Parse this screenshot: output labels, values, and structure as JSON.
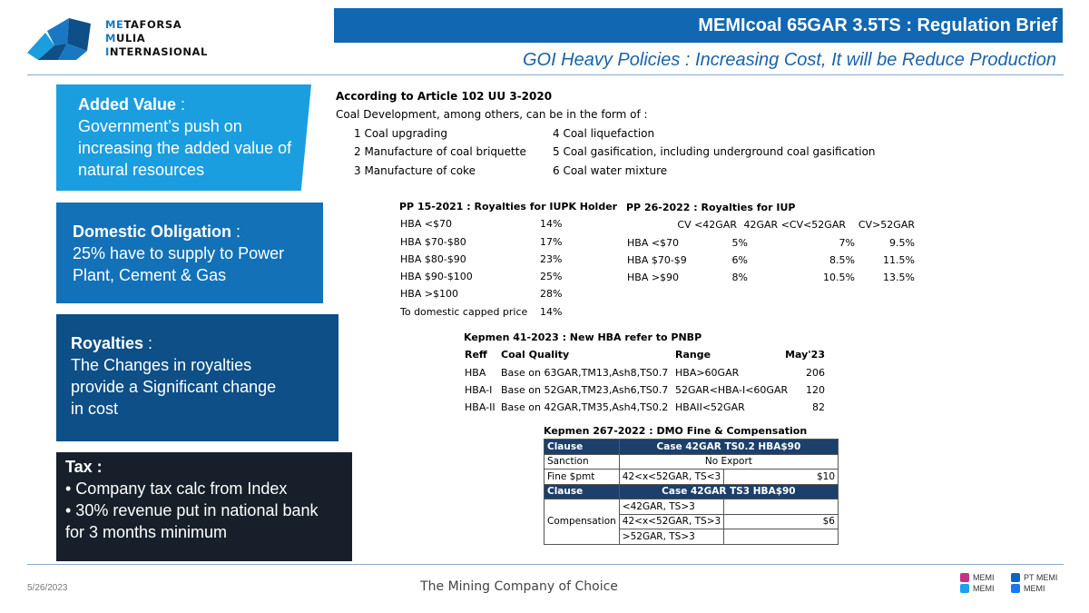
{
  "logo": {
    "line1_hl": "ME",
    "line1_rest": "TAFORSA",
    "line2_hl": "M",
    "line2_rest": "ULIA",
    "line3_hl": "I",
    "line3_rest": "NTERNASIONAL"
  },
  "title": "MEMIcoal 65GAR 3.5TS : Regulation Brief",
  "subtitle": "GOI Heavy Policies : Increasing Cost, It will be Reduce Production",
  "sidebar": {
    "added_value": {
      "head": "Added Value",
      "colon": " :",
      "body": "Government’s push on increasing the added value of natural resources"
    },
    "domestic": {
      "head": "Domestic Obligation",
      "colon": " :",
      "body": "25% have to supply to Power Plant, Cement & Gas"
    },
    "royalties": {
      "head": "Royalties",
      "colon": " :",
      "body": "The Changes in royalties provide a Significant change in cost"
    },
    "tax": {
      "head": "Tax :",
      "bullets": [
        "•    Company tax calc from Index",
        "•    30% revenue put in national bank for 3 months minimum"
      ]
    }
  },
  "article": {
    "title": "According to Article 102 UU 3-2020",
    "intro": "Coal Development, among others, can be in the form of :",
    "items_left": [
      "1 Coal upgrading",
      "2 Manufacture of coal briquette",
      "3 Manufacture of coke"
    ],
    "items_right": [
      "4 Coal liquefaction",
      "5 Coal gasification, including underground coal gasification",
      "6  Coal water mixture"
    ]
  },
  "pp15": {
    "title": "PP 15-2021 : Royalties for IUPK Holder",
    "rows": [
      [
        "HBA <$70",
        "14%"
      ],
      [
        "HBA $70-$80",
        "17%"
      ],
      [
        "HBA $80-$90",
        "23%"
      ],
      [
        "HBA $90-$100",
        "25%"
      ],
      [
        "HBA >$100",
        "28%"
      ],
      [
        "To domestic capped price",
        "14%"
      ]
    ]
  },
  "pp26": {
    "title": "PP 26-2022 : Royalties for IUP",
    "headers": [
      "CV <42GAR",
      "42GAR <CV<52GAR",
      "CV>52GAR"
    ],
    "rows": [
      [
        "HBA <$70",
        "5%",
        "7%",
        "9.5%"
      ],
      [
        "HBA $70-$9",
        "6%",
        "8.5%",
        "11.5%"
      ],
      [
        "HBA >$90",
        "8%",
        "10.5%",
        "13.5%"
      ]
    ]
  },
  "kep41": {
    "title": "Kepmen 41-2023 : New HBA refer to PNBP",
    "headers": [
      "Reff",
      "Coal Quality",
      "Range",
      "May'23"
    ],
    "rows": [
      [
        "HBA",
        "Base on 63GAR,TM13,Ash8,TS0.7",
        "HBA>60GAR",
        "206"
      ],
      [
        "HBA-I",
        "Base on 52GAR,TM23,Ash6,TS0.7",
        "52GAR<HBA-I<60GAR",
        "120"
      ],
      [
        "HBA-II",
        "Base on 42GAR,TM35,Ash4,TS0.2",
        "HBAII<52GAR",
        "82"
      ]
    ]
  },
  "kep267": {
    "title": "Kepmen 267-2022 : DMO Fine & Compensation",
    "head1": [
      "Clause",
      "Case 42GAR TS0.2 HBA$90"
    ],
    "sanction": [
      "Sanction",
      "No Export"
    ],
    "fine": [
      "Fine $pmt",
      "42<x<52GAR, TS<3",
      "$10"
    ],
    "head2": [
      "Clause",
      "Case 42GAR TS3 HBA$90"
    ],
    "comp_label": "Compensation",
    "comp_rows": [
      [
        "<42GAR, TS>3",
        ""
      ],
      [
        "42<x<52GAR, TS>3",
        "$6"
      ],
      [
        ">52GAR, TS>3",
        ""
      ]
    ]
  },
  "footer": {
    "date": "5/26/2023",
    "tagline": "The Mining Company of Choice",
    "social": [
      {
        "icon": "instagram-icon",
        "label": "MEMI",
        "color": "#c13584"
      },
      {
        "icon": "twitter-icon",
        "label": "MEMI",
        "color": "#1da1f2"
      },
      {
        "icon": "linkedin-icon",
        "label": "PT MEMI",
        "color": "#0a66c2"
      },
      {
        "icon": "facebook-icon",
        "label": "MEMI",
        "color": "#1877f2"
      }
    ]
  },
  "colors": {
    "title_bar": "#1167b1",
    "box1": "#1a9ee0",
    "box2": "#1371b8",
    "box3": "#0d4f86",
    "box4": "#17202a",
    "table_header": "#1c3f6b"
  }
}
